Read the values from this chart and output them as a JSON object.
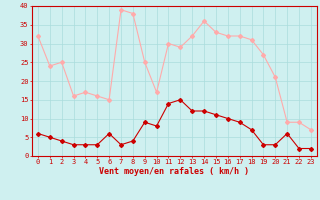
{
  "hours": [
    0,
    1,
    2,
    3,
    4,
    5,
    6,
    7,
    8,
    9,
    10,
    11,
    12,
    13,
    14,
    15,
    16,
    17,
    18,
    19,
    20,
    21,
    22,
    23
  ],
  "wind_avg": [
    6,
    5,
    4,
    3,
    3,
    3,
    6,
    3,
    4,
    9,
    8,
    14,
    15,
    12,
    12,
    11,
    10,
    9,
    7,
    3,
    3,
    6,
    2,
    2
  ],
  "wind_gust": [
    32,
    24,
    25,
    16,
    17,
    16,
    15,
    39,
    38,
    25,
    17,
    30,
    29,
    32,
    36,
    33,
    32,
    32,
    31,
    27,
    21,
    9,
    9,
    7
  ],
  "xlabel": "Vent moyen/en rafales ( km/h )",
  "ylim": [
    0,
    40
  ],
  "yticks": [
    0,
    5,
    10,
    15,
    20,
    25,
    30,
    35,
    40
  ],
  "bg_color": "#cff0f0",
  "grid_color": "#aadddd",
  "avg_color": "#cc0000",
  "gust_color": "#ffaaaa",
  "marker_size": 2.0,
  "line_width": 0.8,
  "tick_fontsize": 5.0,
  "xlabel_fontsize": 6.0
}
